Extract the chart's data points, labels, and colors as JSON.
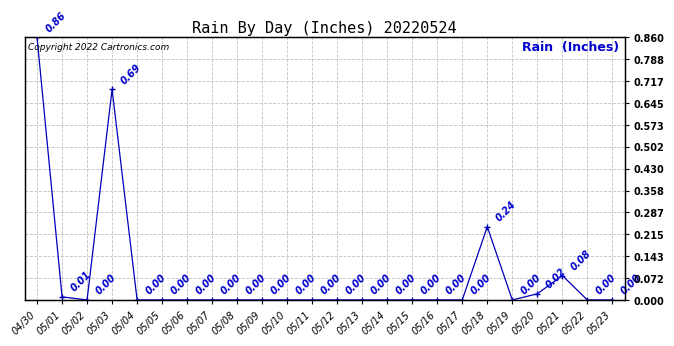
{
  "title": "Rain By Day (Inches) 20220524",
  "copyright_text": "Copyright 2022 Cartronics.com",
  "legend_label": "Rain  (Inches)",
  "dates": [
    "04/30",
    "05/01",
    "05/02",
    "05/03",
    "05/04",
    "05/05",
    "05/06",
    "05/07",
    "05/08",
    "05/09",
    "05/10",
    "05/11",
    "05/12",
    "05/13",
    "05/14",
    "05/15",
    "05/16",
    "05/17",
    "05/18",
    "05/19",
    "05/20",
    "05/21",
    "05/22",
    "05/23"
  ],
  "values": [
    0.86,
    0.01,
    0.0,
    0.69,
    0.0,
    0.0,
    0.0,
    0.0,
    0.0,
    0.0,
    0.0,
    0.0,
    0.0,
    0.0,
    0.0,
    0.0,
    0.0,
    0.0,
    0.24,
    0.0,
    0.02,
    0.08,
    0.0,
    0.0
  ],
  "line_color": "#0000bb",
  "label_color": "#0000cc",
  "grid_color": "#bbbbbb",
  "bg_color": "#ffffff",
  "ylim": [
    0.0,
    0.86
  ],
  "yticks": [
    0.0,
    0.072,
    0.143,
    0.215,
    0.287,
    0.358,
    0.43,
    0.502,
    0.573,
    0.645,
    0.717,
    0.788,
    0.86
  ],
  "title_fontsize": 11,
  "annot_fontsize": 7,
  "tick_fontsize": 7,
  "copyright_fontsize": 6.5,
  "legend_fontsize": 9
}
